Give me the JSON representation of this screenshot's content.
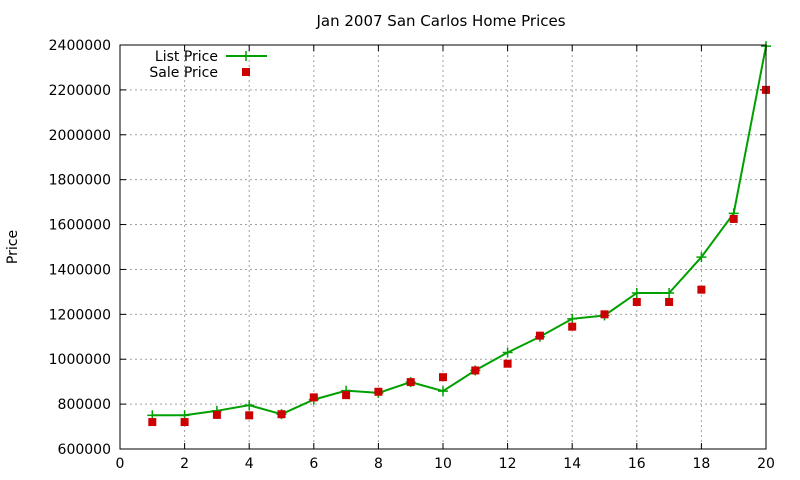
{
  "colors": {
    "list_price": "#00a000",
    "sale_price": "#cc0000"
  },
  "chart_data": {
    "type": "line",
    "title": "Jan 2007 San Carlos Home Prices",
    "xlabel": "",
    "ylabel": "Price",
    "xlim": [
      0,
      20
    ],
    "ylim": [
      600000,
      2400000
    ],
    "xticks": [
      0,
      2,
      4,
      6,
      8,
      10,
      12,
      14,
      16,
      18,
      20
    ],
    "yticks": [
      600000,
      800000,
      1000000,
      1200000,
      1400000,
      1600000,
      1800000,
      2000000,
      2200000,
      2400000
    ],
    "grid": true,
    "legend_position": "top-left",
    "x": [
      1,
      2,
      3,
      4,
      5,
      6,
      7,
      8,
      9,
      10,
      11,
      12,
      13,
      14,
      15,
      16,
      17,
      18,
      19,
      20
    ],
    "series": [
      {
        "name": "List Price",
        "style": "line-plus",
        "values": [
          750000,
          750000,
          770000,
          795000,
          755000,
          820000,
          860000,
          850000,
          898000,
          858000,
          950000,
          1030000,
          1100000,
          1180000,
          1195000,
          1295000,
          1295000,
          1455000,
          1650000,
          2395000
        ]
      },
      {
        "name": "Sale Price",
        "style": "square-points",
        "values": [
          720000,
          720000,
          752000,
          750000,
          755000,
          830000,
          840000,
          855000,
          898000,
          920000,
          950000,
          980000,
          1105000,
          1145000,
          1200000,
          1255000,
          1255000,
          1310000,
          1625000,
          2200000
        ]
      }
    ]
  }
}
